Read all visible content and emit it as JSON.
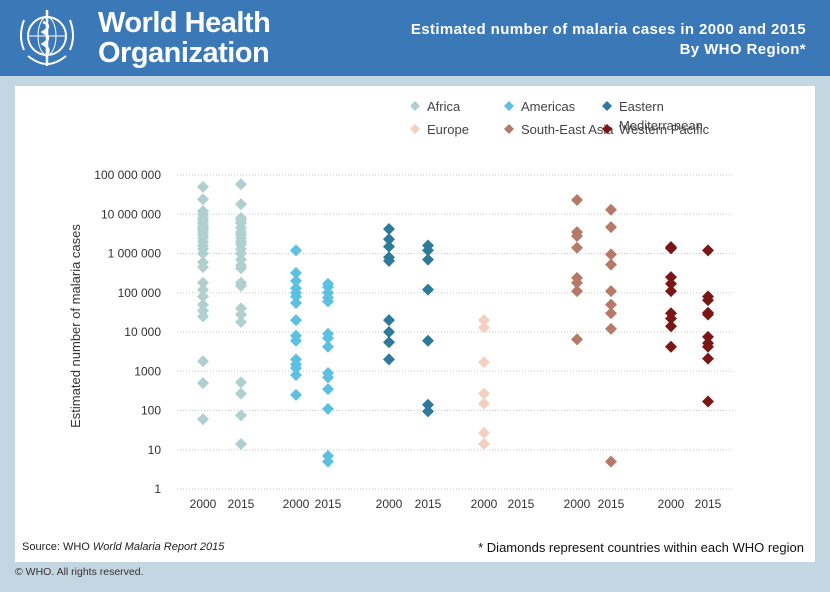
{
  "header": {
    "org_line1": "World Health",
    "org_line2": "Organization",
    "title_line1": "Estimated number of malaria cases in 2000 and 2015",
    "title_line2": "By WHO Region*",
    "logo_icon": "who-emblem-icon"
  },
  "chart_data": {
    "type": "scatter",
    "title": "Estimated number of malaria cases in 2000 and 2015",
    "subtitle": "By WHO Region*",
    "ylabel": "Estimated number of malaria cases",
    "yscale": "log",
    "ylim": [
      1,
      100000000
    ],
    "yticks": [
      "1",
      "10",
      "100",
      "1000",
      "10 000",
      "100 000",
      "1 000 000",
      "10 000 000",
      "100 000 000"
    ],
    "grid": "horizontal dotted",
    "legend_position": "top-right",
    "marker": "diamond",
    "series": [
      {
        "name": "Africa",
        "color": "#b0cfcf",
        "groups": [
          {
            "year": "2000",
            "values": [
              50000000,
              24000000,
              12000000,
              10000000,
              8000000,
              7000000,
              6000000,
              5000000,
              4500000,
              4000000,
              3500000,
              3000000,
              2500000,
              2000000,
              1600000,
              1300000,
              1000000,
              600000,
              450000,
              180000,
              120000,
              80000,
              50000,
              35000,
              25000,
              1800,
              500,
              60
            ]
          },
          {
            "year": "2015",
            "values": [
              58000000,
              18000000,
              8000000,
              7000000,
              6000000,
              4500000,
              3500000,
              3000000,
              2500000,
              2000000,
              1700000,
              1300000,
              1000000,
              700000,
              500000,
              420000,
              180000,
              150000,
              40000,
              28000,
              18000,
              520,
              270,
              75,
              14
            ]
          }
        ]
      },
      {
        "name": "Americas",
        "color": "#5cc0e0",
        "groups": [
          {
            "year": "2000",
            "values": [
              1200000,
              320000,
              200000,
              130000,
              100000,
              80000,
              55000,
              20000,
              8000,
              6000,
              2000,
              1500,
              1200,
              800,
              250
            ]
          },
          {
            "year": "2015",
            "values": [
              170000,
              140000,
              100000,
              75000,
              60000,
              9000,
              7000,
              4200,
              900,
              700,
              350,
              110,
              7,
              5
            ]
          }
        ]
      },
      {
        "name": "Eastern Mediterranean",
        "color": "#2e7a99",
        "groups": [
          {
            "year": "2000",
            "values": [
              4200000,
              2300000,
              1500000,
              800000,
              650000,
              20000,
              10000,
              5500,
              2000
            ]
          },
          {
            "year": "2015",
            "values": [
              1600000,
              1200000,
              700000,
              120000,
              6000,
              140,
              95
            ]
          }
        ]
      },
      {
        "name": "Europe",
        "color": "#f3d1c2",
        "groups": [
          {
            "year": "2000",
            "values": [
              20000,
              13000,
              1700,
              270,
              150,
              27,
              14
            ]
          },
          {
            "year": "2015",
            "values": []
          }
        ]
      },
      {
        "name": "South-East Asia",
        "color": "#b87a68",
        "groups": [
          {
            "year": "2000",
            "values": [
              23000000,
              3500000,
              2800000,
              1400000,
              240000,
              180000,
              110000,
              6500
            ]
          },
          {
            "year": "2015",
            "values": [
              13000000,
              4700000,
              950000,
              520000,
              110000,
              50000,
              30000,
              12000,
              5
            ]
          }
        ]
      },
      {
        "name": "Western Pacific",
        "color": "#7a1616",
        "groups": [
          {
            "year": "2000",
            "values": [
              1450000,
              1350000,
              250000,
              170000,
              110000,
              30000,
              22000,
              14000,
              4200
            ]
          },
          {
            "year": "2015",
            "values": [
              1200000,
              80000,
              65000,
              31000,
              28000,
              7500,
              5200,
              4200,
              2100,
              170
            ]
          }
        ]
      }
    ]
  },
  "notes": {
    "source_prefix": "Source: WHO ",
    "source_italic": "World Malaria Report 2015",
    "footnote": "* Diamonds represent countries within each WHO region",
    "copyright": "© WHO. All rights reserved."
  }
}
